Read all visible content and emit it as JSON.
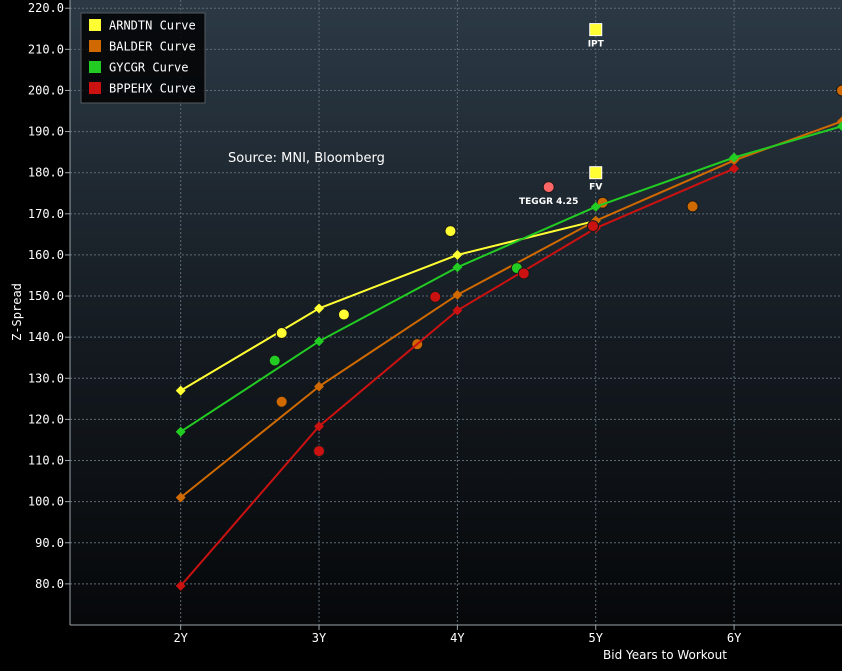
{
  "chart_data": {
    "type": "line",
    "ylabel": "Z-Spread",
    "xlabel": "Bid Years to Workout",
    "source": "Source: MNI, Bloomberg",
    "ylim": [
      70,
      222
    ],
    "xlim": [
      1.2,
      6.78
    ],
    "yticks": [
      80.0,
      90.0,
      100.0,
      110.0,
      120.0,
      130.0,
      140.0,
      150.0,
      160.0,
      170.0,
      180.0,
      190.0,
      200.0,
      210.0,
      220.0
    ],
    "ytick_labels": [
      "80.0",
      "90.0",
      "100.0",
      "110.0",
      "120.0",
      "130.0",
      "140.0",
      "150.0",
      "160.0",
      "170.0",
      "180.0",
      "190.0",
      "200.0",
      "210.0",
      "220.0"
    ],
    "xticks": [
      2,
      3,
      4,
      5,
      6
    ],
    "xtick_labels": [
      "2Y",
      "3Y",
      "4Y",
      "5Y",
      "6Y"
    ],
    "legend_position": "top-left",
    "series": [
      {
        "name": "ARNDTN Curve",
        "color": "#FFFF33",
        "curve": [
          [
            2,
            127
          ],
          [
            3,
            147
          ],
          [
            4,
            160
          ],
          [
            5,
            168.3
          ]
        ],
        "bonds": [
          [
            2.73,
            141
          ],
          [
            3.18,
            145.5
          ],
          [
            3.95,
            165.8
          ]
        ]
      },
      {
        "name": "BALDER Curve",
        "color": "#D06A00",
        "curve": [
          [
            2,
            101
          ],
          [
            3,
            128
          ],
          [
            4,
            150.3
          ],
          [
            5,
            168.3
          ],
          [
            6,
            183
          ],
          [
            6.78,
            192.5
          ]
        ],
        "bonds": [
          [
            2.73,
            124.3
          ],
          [
            3.71,
            138.3
          ],
          [
            5.05,
            172.7
          ],
          [
            5.7,
            171.8
          ],
          [
            6.78,
            200
          ]
        ]
      },
      {
        "name": "GYCGR Curve",
        "color": "#22CC22",
        "curve": [
          [
            2,
            117
          ],
          [
            3,
            139
          ],
          [
            4,
            157
          ],
          [
            5,
            171.7
          ],
          [
            6,
            183.7
          ],
          [
            6.78,
            191.3
          ]
        ],
        "bonds": [
          [
            2.68,
            134.3
          ],
          [
            4.43,
            156.8
          ]
        ]
      },
      {
        "name": "BPPEHX Curve",
        "color": "#CC1111",
        "curve": [
          [
            2,
            79.5
          ],
          [
            3,
            118.3
          ],
          [
            4,
            146.5
          ],
          [
            5,
            166.5
          ],
          [
            6,
            181
          ]
        ],
        "bonds": [
          [
            3,
            112.3
          ],
          [
            3.84,
            149.8
          ],
          [
            4.48,
            155.5
          ],
          [
            4.98,
            167
          ]
        ]
      }
    ],
    "annotations": [
      {
        "label": "IPT",
        "x": 5,
        "y": 214.8,
        "marker": "square",
        "color": "#FFFF33"
      },
      {
        "label": "FV",
        "x": 5,
        "y": 180,
        "marker": "square",
        "color": "#FFFF33"
      },
      {
        "label": "TEGGR 4.25",
        "x": 4.66,
        "y": 176.5,
        "marker": "circle",
        "color": "#FF6666"
      }
    ]
  }
}
